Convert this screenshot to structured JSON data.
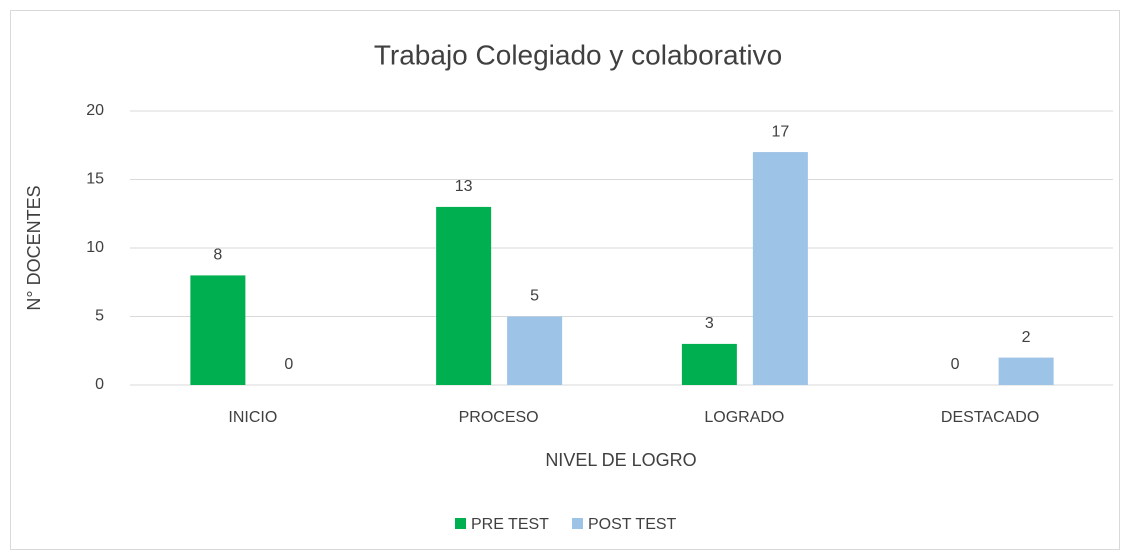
{
  "chart_data": {
    "type": "bar",
    "title": "Trabajo Colegiado y colaborativo",
    "x_label": "NIVEL DE LOGRO",
    "y_label": "N° DOCENTES",
    "categories": [
      "INICIO",
      "PROCESO",
      "LOGRADO",
      "DESTACADO"
    ],
    "series": [
      {
        "name": "PRE TEST",
        "color": "#00b050",
        "values": [
          8,
          13,
          3,
          0
        ]
      },
      {
        "name": "POST TEST",
        "color": "#9dc3e6",
        "values": [
          0,
          5,
          17,
          2
        ]
      }
    ],
    "ylim": [
      0,
      20
    ],
    "yticks": [
      0,
      5,
      10,
      15,
      20
    ],
    "grid": true,
    "legend": "bottom"
  }
}
